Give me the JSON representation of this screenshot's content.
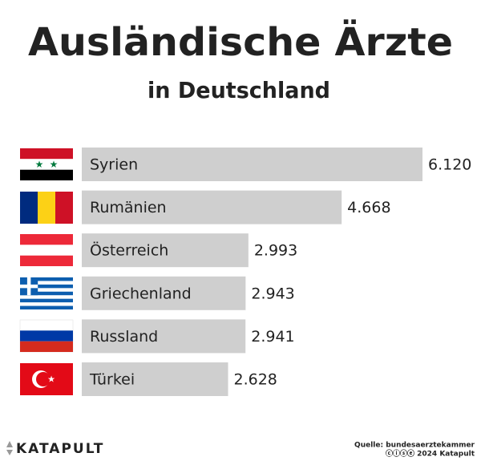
{
  "chart_data": {
    "type": "bar",
    "title": "Ausländische Ärzte",
    "subtitle": "in Deutschland",
    "categories": [
      "Syrien",
      "Rumänien",
      "Österreich",
      "Griechenland",
      "Russland",
      "Türkei"
    ],
    "values": [
      6120,
      4668,
      2993,
      2943,
      2941,
      2628
    ],
    "value_labels": [
      "6.120",
      "4.668",
      "2.993",
      "2.943",
      "2.941",
      "2.628"
    ],
    "color": "#cfcfcf",
    "brand": "KATAPULT",
    "source": "Quelle: bundesaerztekammer",
    "credit": "ⓒⓘⓢⓔ 2024 Katapult"
  }
}
